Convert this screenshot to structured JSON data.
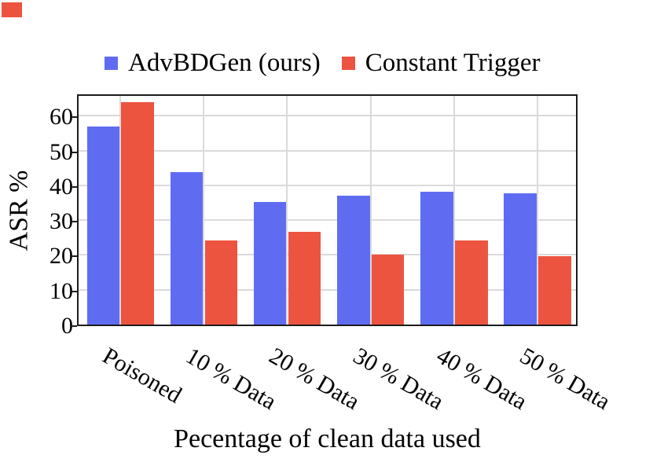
{
  "corner_marker": {
    "color": "#ED5440"
  },
  "legend": {
    "items": [
      {
        "label": "AdvBDGen (ours)",
        "color": "#5F6CF2"
      },
      {
        "label": "Constant Trigger",
        "color": "#ED5440"
      }
    ]
  },
  "chart_data": {
    "type": "bar",
    "categories": [
      "Poisoned",
      "10 % Data",
      "20 % Data",
      "30 % Data",
      "40 % Data",
      "50 % Data"
    ],
    "series": [
      {
        "name": "AdvBDGen (ours)",
        "color": "#5F6CF2",
        "values": [
          57.0,
          43.7,
          35.2,
          37.0,
          38.2,
          37.6
        ]
      },
      {
        "name": "Constant Trigger",
        "color": "#ED5440",
        "values": [
          63.8,
          24.1,
          26.7,
          20.1,
          24.1,
          19.6
        ]
      }
    ],
    "title": "",
    "xlabel": "Pecentage of clean data used",
    "ylabel": "ASR %",
    "yticks": [
      0,
      10,
      20,
      30,
      40,
      50,
      60
    ],
    "ylim": [
      0,
      66.6
    ],
    "grid": true,
    "grid_color": "#dadada",
    "frame_color": "#1c1c1c",
    "legend_position": "top"
  }
}
